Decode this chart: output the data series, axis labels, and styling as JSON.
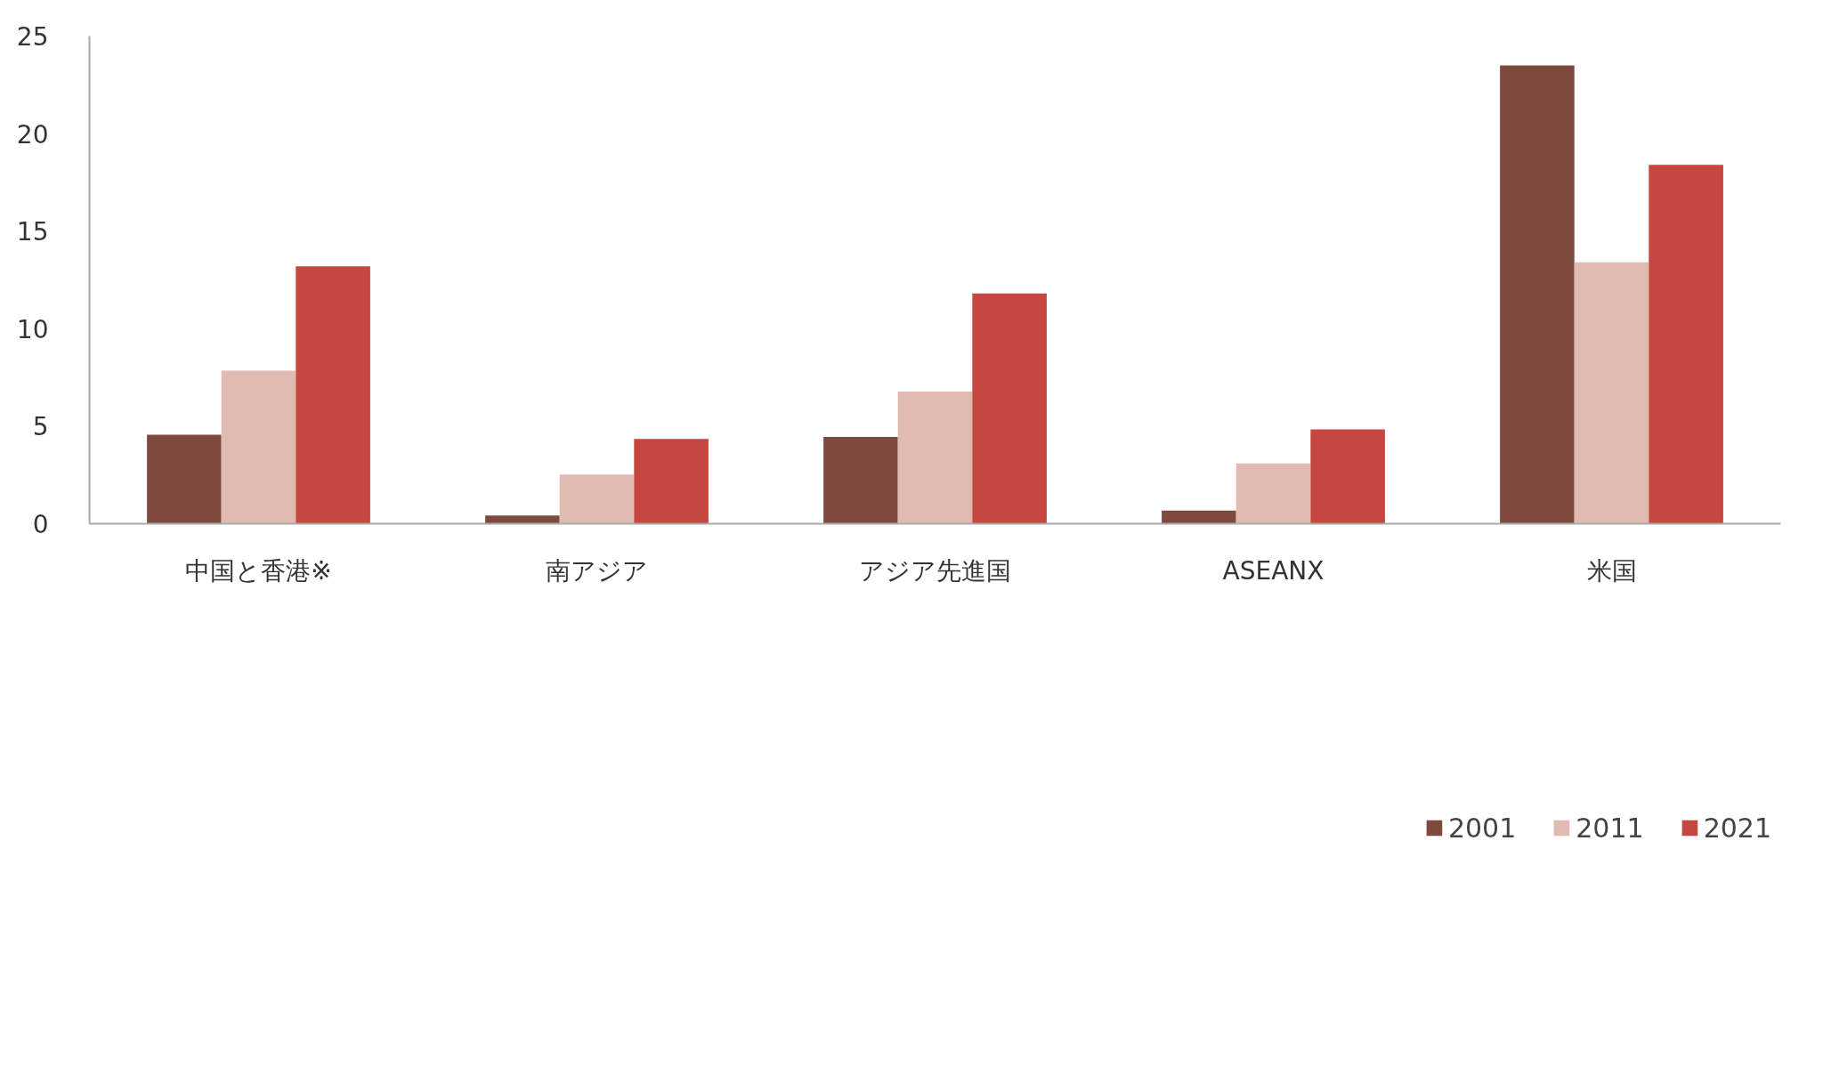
{
  "chart_data": {
    "type": "bar",
    "categories": [
      "中国と香港※",
      "南アジア",
      "アジア先進国",
      "ASEANX",
      "米国"
    ],
    "series": [
      {
        "name": "2001",
        "color": "#7f4a3e",
        "values": [
          4.56,
          0.42,
          4.45,
          0.67,
          23.5
        ]
      },
      {
        "name": "2011",
        "color": "#e0bbb2",
        "values": [
          7.85,
          2.52,
          6.77,
          3.09,
          13.4
        ]
      },
      {
        "name": "2021",
        "color": "#c5473f",
        "values": [
          13.2,
          4.35,
          11.8,
          4.84,
          18.4
        ]
      }
    ],
    "ylim": [
      0,
      25
    ],
    "yticks": [
      0,
      5,
      10,
      15,
      20,
      25
    ],
    "grid": false,
    "legend": "bottom"
  }
}
